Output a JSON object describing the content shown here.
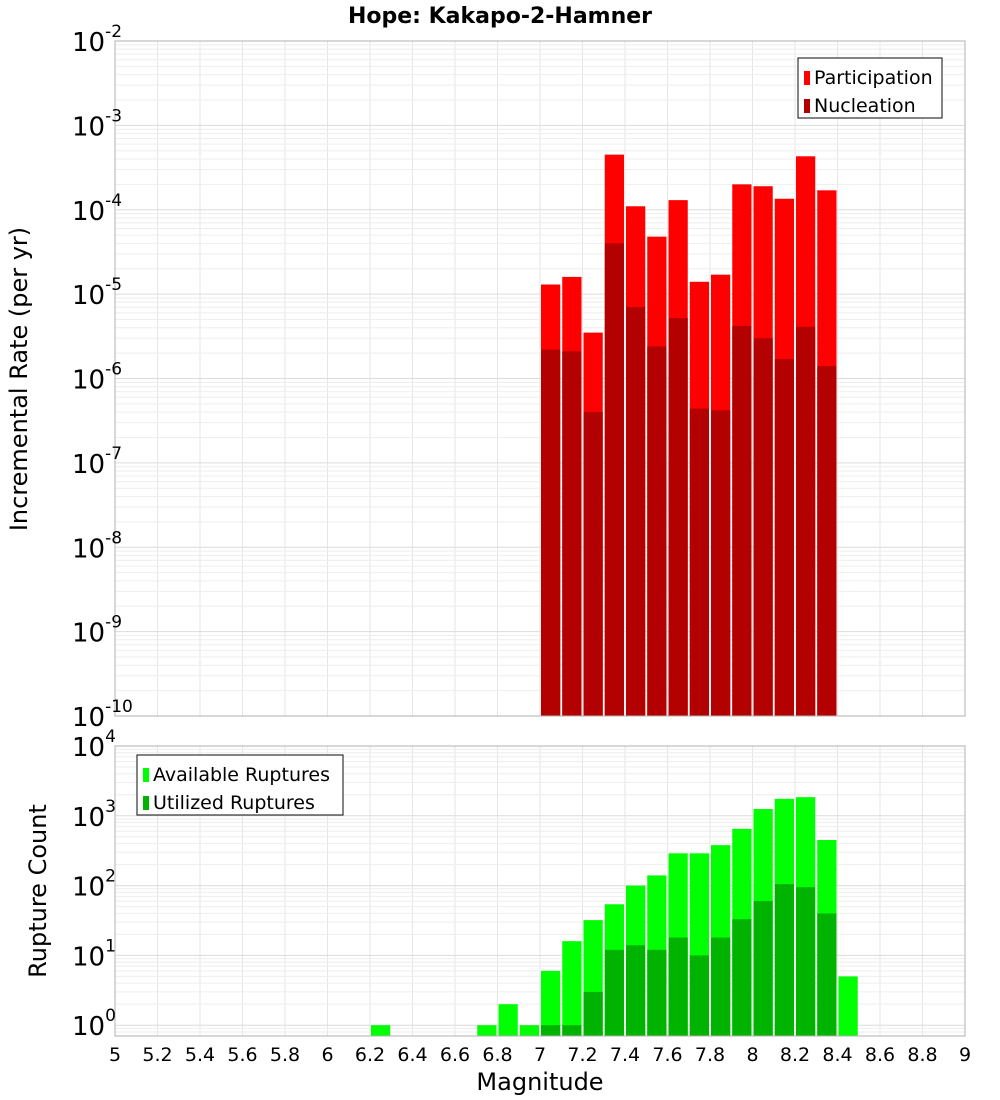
{
  "chart_data": {
    "title": "Hope: Kakapo-2-Hamner",
    "xlabel": "Magnitude",
    "x_ticks": [
      "5",
      "5.2",
      "5.4",
      "5.6",
      "5.8",
      "6",
      "6.2",
      "6.4",
      "6.6",
      "6.8",
      "7",
      "7.2",
      "7.4",
      "7.6",
      "7.8",
      "8",
      "8.2",
      "8.4",
      "8.6",
      "8.8",
      "9"
    ],
    "xlim": [
      5,
      9
    ],
    "bin_width": 0.1,
    "panels": [
      {
        "type": "bar",
        "ylabel": "Incremental Rate (per yr)",
        "yscale": "log",
        "ylim": [
          1e-10,
          0.01
        ],
        "y_tick_exponents": [
          -10,
          -9,
          -8,
          -7,
          -6,
          -5,
          -4,
          -3,
          -2
        ],
        "legend": {
          "placement": "top-right",
          "entries": [
            "Participation",
            "Nucleation"
          ]
        },
        "x": [
          7.05,
          7.15,
          7.25,
          7.35,
          7.45,
          7.55,
          7.65,
          7.75,
          7.85,
          7.95,
          8.05,
          8.15,
          8.25,
          8.35
        ],
        "series": [
          {
            "name": "Participation",
            "color": "#ff0000",
            "values": [
              1.3e-05,
              1.6e-05,
              3.5e-06,
              0.00045,
              0.00011,
              4.8e-05,
              0.00013,
              1.4e-05,
              1.7e-05,
              0.0002,
              0.00019,
              0.000135,
              0.00043,
              0.00017
            ]
          },
          {
            "name": "Nucleation",
            "color": "#b30000",
            "values": [
              2.2e-06,
              2.1e-06,
              4e-07,
              4e-05,
              7e-06,
              2.4e-06,
              5.2e-06,
              4.4e-07,
              4.2e-07,
              4.2e-06,
              3e-06,
              1.7e-06,
              4.1e-06,
              1.4e-06
            ]
          }
        ]
      },
      {
        "type": "bar",
        "ylabel": "Rupture Count",
        "yscale": "log",
        "ylim": [
          0.7,
          10000
        ],
        "y_tick_exponents": [
          0,
          1,
          2,
          3,
          4
        ],
        "legend": {
          "placement": "top-left",
          "entries": [
            "Available Ruptures",
            "Utilized Ruptures"
          ]
        },
        "series": [
          {
            "name": "Available Ruptures",
            "color": "#00ff00",
            "x": [
              6.25,
              6.75,
              6.85,
              6.95,
              7.05,
              7.15,
              7.25,
              7.35,
              7.45,
              7.55,
              7.65,
              7.75,
              7.85,
              7.95,
              8.05,
              8.15,
              8.25,
              8.35,
              8.45
            ],
            "values": [
              1,
              1,
              2,
              1,
              6,
              16,
              32,
              54,
              100,
              140,
              290,
              290,
              380,
              650,
              1250,
              1750,
              1850,
              450,
              5
            ]
          },
          {
            "name": "Utilized Ruptures",
            "color": "#00b300",
            "x": [
              7.05,
              7.15,
              7.25,
              7.35,
              7.45,
              7.55,
              7.65,
              7.75,
              7.85,
              7.95,
              8.05,
              8.15,
              8.25,
              8.35
            ],
            "values": [
              1,
              1,
              3,
              12,
              14,
              12,
              18,
              10,
              18,
              33,
              60,
              105,
              95,
              40
            ]
          }
        ]
      }
    ]
  }
}
